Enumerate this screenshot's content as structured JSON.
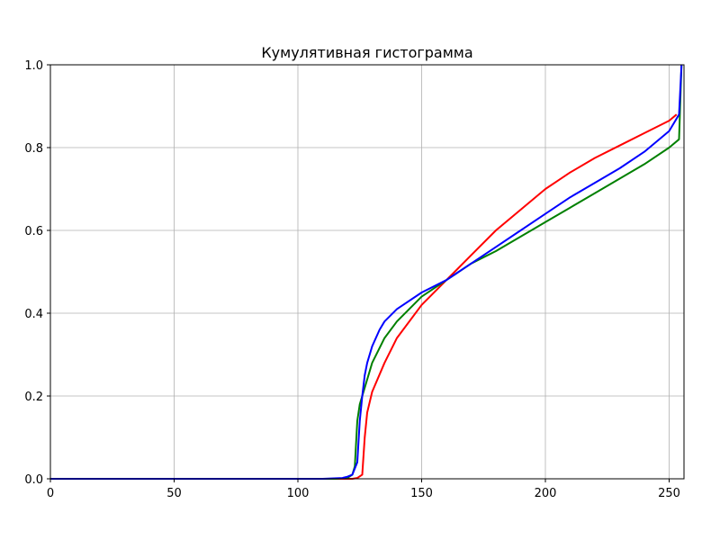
{
  "chart_data": {
    "type": "line",
    "title": "Кумулятивная гистограмма",
    "xlabel": "",
    "ylabel": "",
    "xlim": [
      0,
      256
    ],
    "ylim": [
      0,
      1.0
    ],
    "xticks": [
      0,
      50,
      100,
      150,
      200,
      250
    ],
    "xtick_labels": [
      "0",
      "50",
      "100",
      "150",
      "200",
      "250"
    ],
    "yticks": [
      0.0,
      0.2,
      0.4,
      0.6,
      0.8,
      1.0
    ],
    "ytick_labels": [
      "0.0",
      "0.2",
      "0.4",
      "0.6",
      "0.8",
      "1.0"
    ],
    "grid": true,
    "series": [
      {
        "color": "#ff0000",
        "x": [
          0,
          100,
          120,
          122,
          124,
          126,
          127,
          128,
          130,
          135,
          140,
          150,
          160,
          170,
          180,
          190,
          200,
          205,
          210,
          220,
          230,
          240,
          250,
          253
        ],
        "values": [
          0.0,
          0.0,
          0.0,
          0.0,
          0.002,
          0.01,
          0.1,
          0.16,
          0.21,
          0.28,
          0.34,
          0.42,
          0.48,
          0.54,
          0.6,
          0.65,
          0.7,
          0.72,
          0.74,
          0.775,
          0.805,
          0.835,
          0.865,
          0.88
        ]
      },
      {
        "color": "#008000",
        "x": [
          0,
          115,
          120,
          122,
          123,
          124,
          125,
          127,
          130,
          135,
          140,
          150,
          160,
          170,
          180,
          190,
          200,
          210,
          220,
          230,
          240,
          250,
          254,
          255
        ],
        "values": [
          0.0,
          0.0,
          0.002,
          0.01,
          0.03,
          0.14,
          0.18,
          0.22,
          0.28,
          0.34,
          0.38,
          0.44,
          0.48,
          0.52,
          0.55,
          0.585,
          0.62,
          0.655,
          0.69,
          0.725,
          0.76,
          0.8,
          0.82,
          1.0
        ]
      },
      {
        "color": "#0000ff",
        "x": [
          0,
          110,
          118,
          120,
          122,
          124,
          125,
          126,
          127,
          128,
          130,
          133,
          135,
          140,
          150,
          160,
          170,
          180,
          190,
          200,
          210,
          220,
          230,
          240,
          250,
          254,
          255
        ],
        "values": [
          0.0,
          0.0,
          0.002,
          0.005,
          0.01,
          0.04,
          0.14,
          0.2,
          0.25,
          0.28,
          0.32,
          0.36,
          0.38,
          0.41,
          0.45,
          0.48,
          0.52,
          0.56,
          0.6,
          0.64,
          0.68,
          0.715,
          0.75,
          0.79,
          0.84,
          0.88,
          1.0
        ]
      }
    ]
  },
  "colors": {
    "grid": "#b0b0b0",
    "axes": "#000000",
    "background": "#ffffff"
  }
}
